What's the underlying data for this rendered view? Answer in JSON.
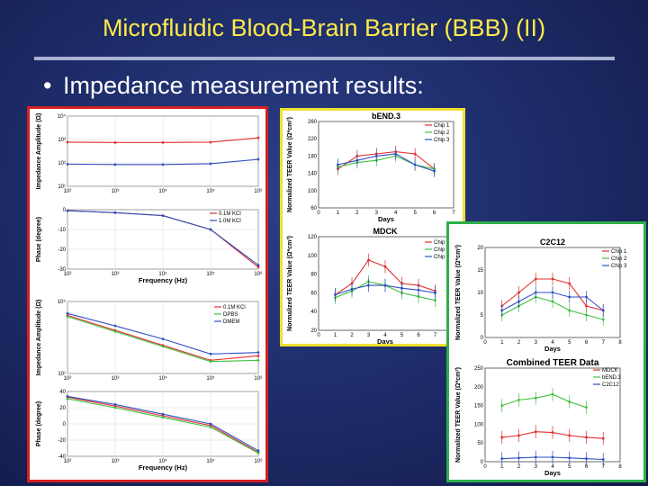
{
  "slide": {
    "title": "Microfluidic Blood-Brain Barrier (BBB) (II)",
    "bullet": "Impedance measurement results:",
    "colors": {
      "title": "#ffe94a",
      "background": "#1c2a66",
      "red_frame": "#d42020",
      "yellow_frame": "#f0e030",
      "green_frame": "#2fae49"
    }
  },
  "chart_data": [
    {
      "type": "line",
      "ylabel": "Impedance Amplitude (Ω)",
      "xlabel": "",
      "xscale": "log",
      "xticks": [
        "10²",
        "10³",
        "10⁴",
        "10⁵",
        "10⁶"
      ],
      "yticks": [
        "10⁴",
        "10³",
        "10²",
        "10¹"
      ],
      "yscale": "log",
      "x": [
        100,
        1000,
        10000,
        100000,
        1000000
      ],
      "series": [
        {
          "name": "0.1M KCl",
          "color": "#e03030",
          "values": [
            1800,
            1750,
            1750,
            1800,
            2600
          ]
        },
        {
          "name": "1.0M KCl",
          "color": "#3050c0",
          "values": [
            280,
            270,
            270,
            290,
            420
          ]
        }
      ]
    },
    {
      "type": "line",
      "ylabel": "Phase (degree)",
      "xlabel": "Frequency (Hz)",
      "xscale": "log",
      "xticks": [
        "10²",
        "10³",
        "10⁴",
        "10⁵",
        "10⁶"
      ],
      "yticks": [
        "0",
        "-10",
        "-20",
        "-30"
      ],
      "ylim": [
        -30,
        0
      ],
      "x": [
        100,
        1000,
        10000,
        100000,
        1000000
      ],
      "legend": [
        "0.1M KCl",
        "1.0M KCl"
      ],
      "series": [
        {
          "name": "0.1M KCl",
          "color": "#e03030",
          "values": [
            -0.5,
            -1.5,
            -3,
            -10,
            -29
          ]
        },
        {
          "name": "1.0M KCl",
          "color": "#3050c0",
          "values": [
            -0.5,
            -1.5,
            -3,
            -10,
            -28
          ]
        }
      ]
    },
    {
      "type": "line",
      "ylabel": "Impedance Amplitude (Ω)",
      "xlabel": "",
      "xscale": "log",
      "yscale": "log",
      "xticks": [
        "10²",
        "10³",
        "10⁴",
        "10⁵",
        "10⁶"
      ],
      "yticks": [
        "10⁵",
        "10¹"
      ],
      "x": [
        100,
        1000,
        10000,
        100000,
        1000000
      ],
      "legend": [
        "0.1M KCl",
        "DPBS",
        "DMEM"
      ],
      "series": [
        {
          "name": "0.1M KCl",
          "color": "#e03030",
          "values": [
            30000,
            3000,
            300,
            30,
            60
          ]
        },
        {
          "name": "DPBS",
          "color": "#40c040",
          "values": [
            25000,
            2500,
            250,
            25,
            30
          ]
        },
        {
          "name": "DMEM",
          "color": "#3050c0",
          "values": [
            40000,
            6000,
            800,
            80,
            100
          ]
        }
      ]
    },
    {
      "type": "line",
      "ylabel": "Phase (degree)",
      "xlabel": "Frequency (Hz)",
      "xscale": "log",
      "xticks": [
        "10²",
        "10³",
        "10⁴",
        "10⁵",
        "10⁶"
      ],
      "yticks": [
        "40",
        "20",
        "0",
        "-20",
        "-40"
      ],
      "ylim": [
        -40,
        40
      ],
      "x": [
        100,
        1000,
        10000,
        100000,
        1000000
      ],
      "series": [
        {
          "name": "0.1M KCl",
          "color": "#e03030",
          "values": [
            33,
            22,
            10,
            -2,
            -35
          ]
        },
        {
          "name": "DPBS",
          "color": "#40c040",
          "values": [
            31,
            20,
            8,
            -4,
            -36
          ]
        },
        {
          "name": "DMEM",
          "color": "#3050c0",
          "values": [
            34,
            24,
            12,
            0,
            -33
          ]
        }
      ]
    },
    {
      "type": "line",
      "title": "bEND.3",
      "ylabel": "Normalized TEER Value (Ω*cm²)",
      "xlabel": "Days",
      "ylim": [
        60,
        260
      ],
      "yticks": [
        "260",
        "220",
        "180",
        "140",
        "100",
        "60"
      ],
      "xticks": [
        "0",
        "1",
        "2",
        "3",
        "4",
        "5",
        "6",
        "7"
      ],
      "x": [
        1,
        2,
        3,
        4,
        5,
        6
      ],
      "legend": [
        "Chip 1",
        "Chip 2",
        "Chip 3"
      ],
      "series": [
        {
          "name": "Chip 1",
          "color": "#e03030",
          "values": [
            150,
            180,
            185,
            190,
            185,
            150
          ]
        },
        {
          "name": "Chip 2",
          "color": "#40c040",
          "values": [
            155,
            165,
            170,
            180,
            160,
            150
          ]
        },
        {
          "name": "Chip 3",
          "color": "#3050c0",
          "values": [
            160,
            170,
            180,
            185,
            160,
            145
          ]
        }
      ]
    },
    {
      "type": "line",
      "title": "MDCK",
      "ylabel": "Normalized TEER Value (Ω*cm²)",
      "xlabel": "Days",
      "ylim": [
        20,
        120
      ],
      "yticks": [
        "120",
        "100",
        "80",
        "60",
        "40",
        "20"
      ],
      "xticks": [
        "0",
        "1",
        "2",
        "3",
        "4",
        "5",
        "6",
        "7",
        "8"
      ],
      "x": [
        1,
        2,
        3,
        4,
        5,
        6,
        7
      ],
      "legend": [
        "Chip 1",
        "Chip 2",
        "Chip 3"
      ],
      "series": [
        {
          "name": "Chip 1",
          "color": "#e03030",
          "values": [
            58,
            70,
            95,
            88,
            70,
            68,
            62
          ]
        },
        {
          "name": "Chip 2",
          "color": "#40c040",
          "values": [
            55,
            62,
            72,
            68,
            60,
            56,
            52
          ]
        },
        {
          "name": "Chip 3",
          "color": "#3050c0",
          "values": [
            58,
            64,
            68,
            68,
            65,
            63,
            60
          ]
        }
      ]
    },
    {
      "type": "line",
      "title": "C2C12",
      "ylabel": "Normalized TEER Value (Ω*cm²)",
      "xlabel": "Days",
      "ylim": [
        0,
        20
      ],
      "yticks": [
        "20",
        "15",
        "10",
        "5",
        "0"
      ],
      "xticks": [
        "0",
        "1",
        "2",
        "3",
        "4",
        "5",
        "6",
        "7",
        "8"
      ],
      "x": [
        1,
        2,
        3,
        4,
        5,
        6,
        7
      ],
      "legend": [
        "Chip 1",
        "Chip 2",
        "Chip 3"
      ],
      "series": [
        {
          "name": "Chip 1",
          "color": "#e03030",
          "values": [
            7,
            10,
            13,
            13,
            12,
            7,
            6
          ]
        },
        {
          "name": "Chip 2",
          "color": "#40c040",
          "values": [
            5,
            7,
            9,
            8,
            6,
            5,
            4
          ]
        },
        {
          "name": "Chip 3",
          "color": "#3050c0",
          "values": [
            6,
            8,
            10,
            10,
            9,
            9,
            6
          ]
        }
      ]
    },
    {
      "type": "line",
      "title": "Combined TEER Data",
      "ylabel": "Normalized TEER Value (Ω*cm²)",
      "xlabel": "Days",
      "ylim": [
        0,
        250
      ],
      "yticks": [
        "250",
        "200",
        "150",
        "100",
        "50",
        "0"
      ],
      "xticks": [
        "0",
        "1",
        "2",
        "3",
        "4",
        "5",
        "6",
        "7",
        "8"
      ],
      "x": [
        1,
        2,
        3,
        4,
        5,
        6,
        7
      ],
      "legend": [
        "MDCK",
        "bEND.3",
        "C2C12"
      ],
      "series": [
        {
          "name": "MDCK",
          "color": "#e03030",
          "values": [
            65,
            70,
            80,
            78,
            70,
            65,
            62
          ]
        },
        {
          "name": "bEND.3",
          "color": "#40c040",
          "values": [
            150,
            165,
            170,
            180,
            160,
            145,
            null
          ]
        },
        {
          "name": "C2C12",
          "color": "#3050c0",
          "values": [
            8,
            10,
            12,
            12,
            10,
            8,
            6
          ]
        }
      ]
    }
  ]
}
